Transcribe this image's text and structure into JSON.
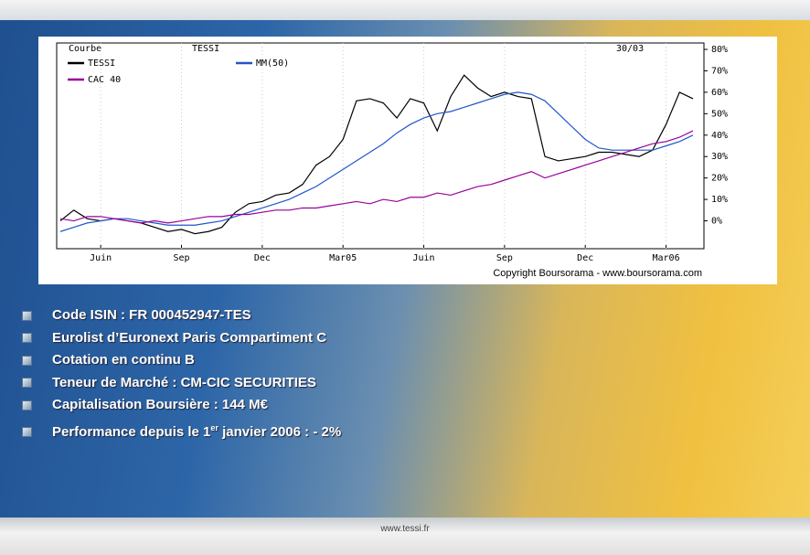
{
  "chart_data": {
    "type": "line",
    "label": "Courbe",
    "title": "TESSI",
    "date": "30/03",
    "categories": [
      null,
      null,
      null,
      "Juin",
      null,
      null,
      null,
      null,
      null,
      "Sep",
      null,
      null,
      null,
      null,
      null,
      "Dec",
      null,
      null,
      null,
      null,
      null,
      "Mar05",
      null,
      null,
      null,
      null,
      null,
      "Juin",
      null,
      null,
      null,
      null,
      null,
      "Sep",
      null,
      null,
      null,
      null,
      null,
      "Dec",
      null,
      null,
      null,
      null,
      null,
      "Mar06",
      null,
      null
    ],
    "series": [
      {
        "name": "TESSI",
        "color": "#000000",
        "values": [
          0,
          5,
          1,
          0,
          1,
          0,
          -1,
          -3,
          -5,
          -4,
          -6,
          -5,
          -3,
          4,
          8,
          9,
          12,
          13,
          17,
          26,
          30,
          38,
          56,
          57,
          55,
          48,
          57,
          55,
          42,
          58,
          68,
          62,
          58,
          60,
          58,
          57,
          30,
          28,
          29,
          30,
          32,
          32,
          31,
          30,
          33,
          45,
          60,
          57
        ]
      },
      {
        "name": "MM(50)",
        "color": "#2255cc",
        "values": [
          -5,
          -3,
          -1,
          0,
          1,
          1,
          0,
          -1,
          -2,
          -2,
          -2,
          -1,
          0,
          2,
          4,
          6,
          8,
          10,
          13,
          16,
          20,
          24,
          28,
          32,
          36,
          41,
          45,
          48,
          50,
          51,
          53,
          55,
          57,
          59,
          60,
          59,
          56,
          50,
          44,
          38,
          34,
          33,
          33,
          33,
          33,
          35,
          37,
          40
        ]
      },
      {
        "name": "CAC 40",
        "color": "#990099",
        "values": [
          1,
          0,
          2,
          2,
          1,
          0,
          -1,
          0,
          -1,
          0,
          1,
          2,
          2,
          3,
          3,
          4,
          5,
          5,
          6,
          6,
          7,
          8,
          9,
          8,
          10,
          9,
          11,
          11,
          13,
          12,
          14,
          16,
          17,
          19,
          21,
          23,
          20,
          22,
          24,
          26,
          28,
          30,
          32,
          34,
          36,
          37,
          39,
          42
        ]
      }
    ],
    "ylim": [
      -13,
      83
    ],
    "yticks": [
      {
        "value": 0,
        "label": "0%"
      },
      {
        "value": 10,
        "label": "10%"
      },
      {
        "value": 20,
        "label": "20%"
      },
      {
        "value": 30,
        "label": "30%"
      },
      {
        "value": 40,
        "label": "40%"
      },
      {
        "value": 50,
        "label": "50%"
      },
      {
        "value": 60,
        "label": "60%"
      },
      {
        "value": 70,
        "label": "70%"
      },
      {
        "value": 80,
        "label": "80%"
      }
    ],
    "copyright": "Copyright Boursorama - www.boursorama.com"
  },
  "bullets": [
    "Code ISIN : FR 000452947-TES",
    "Eurolist d’Euronext Paris Compartiment C",
    "Cotation en continu B",
    "Teneur de Marché : CM-CIC SECURITIES",
    "Capitalisation Boursière : 144 M€"
  ],
  "performance": {
    "before": "Performance depuis le 1",
    "sup": "er",
    "after": " janvier 2006 : - 2%"
  },
  "footer": "www.tessi.fr"
}
